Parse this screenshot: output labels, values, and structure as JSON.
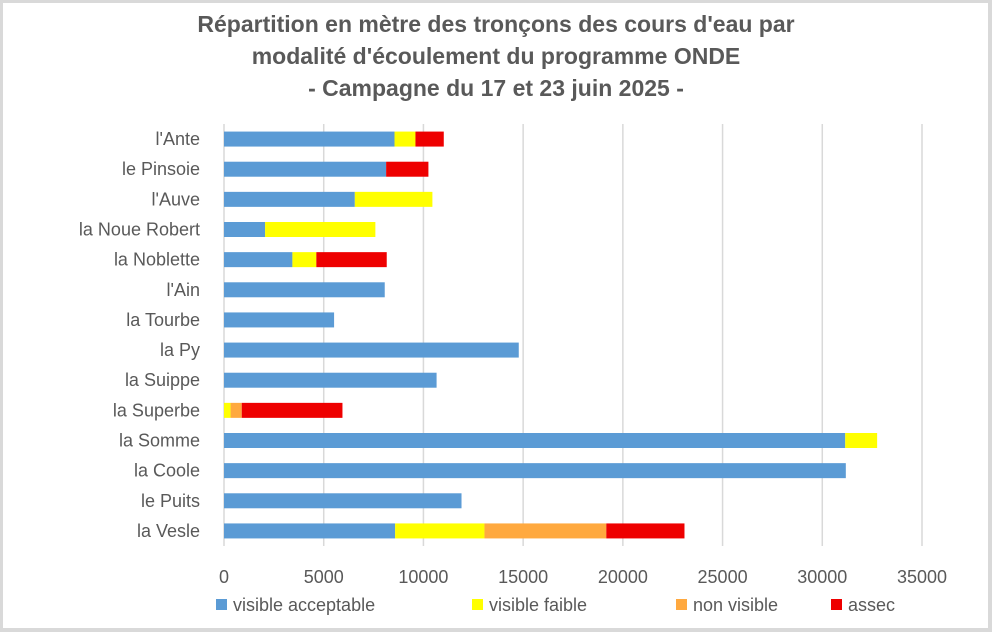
{
  "chart_data": {
    "type": "bar",
    "orientation": "horizontal",
    "stacked": true,
    "title": "Répartition en mètre des tronçons des cours d'eau par modalité d'écoulement du programme ONDE - Campagne du 17 et 23 juin 2025 -",
    "title_lines": [
      "Répartition en mètre des tronçons des cours d'eau par",
      "modalité d'écoulement du programme ONDE",
      "- Campagne du 17 et 23 juin 2025 -"
    ],
    "xlabel": "",
    "ylabel": "",
    "xlim": [
      0,
      35000
    ],
    "xticks": [
      "0",
      "5000",
      "10000",
      "15000",
      "20000",
      "25000",
      "30000",
      "35000"
    ],
    "xtick_values": [
      0,
      5000,
      10000,
      15000,
      20000,
      25000,
      30000,
      35000
    ],
    "grid": true,
    "legend_position": "bottom",
    "categories": [
      "l'Ante",
      "le Pinsoie",
      "l'Auve",
      "la Noue Robert",
      "la Noblette",
      "l'Ain",
      "la Tourbe",
      "la Py",
      "la Suippe",
      "la Superbe",
      "la Somme",
      "la Coole",
      "le Puits",
      "la Vesle"
    ],
    "series": [
      {
        "name": "visible acceptable",
        "color": "#5b9bd5",
        "values": [
          8550,
          8130,
          6560,
          2060,
          3430,
          8060,
          5520,
          14780,
          10660,
          0,
          31150,
          31180,
          11910,
          8580
        ]
      },
      {
        "name": "visible faible",
        "color": "#ffff00",
        "values": [
          1050,
          0,
          3890,
          5530,
          1200,
          0,
          0,
          0,
          0,
          330,
          1600,
          0,
          0,
          4480
        ]
      },
      {
        "name": "non visible",
        "color": "#ffa93f",
        "values": [
          0,
          0,
          0,
          0,
          0,
          0,
          0,
          0,
          0,
          560,
          0,
          0,
          0,
          6110
        ]
      },
      {
        "name": "assec",
        "color": "#ee0000",
        "values": [
          1420,
          2120,
          0,
          0,
          3530,
          0,
          0,
          0,
          0,
          5050,
          0,
          0,
          0,
          3920
        ]
      }
    ]
  }
}
